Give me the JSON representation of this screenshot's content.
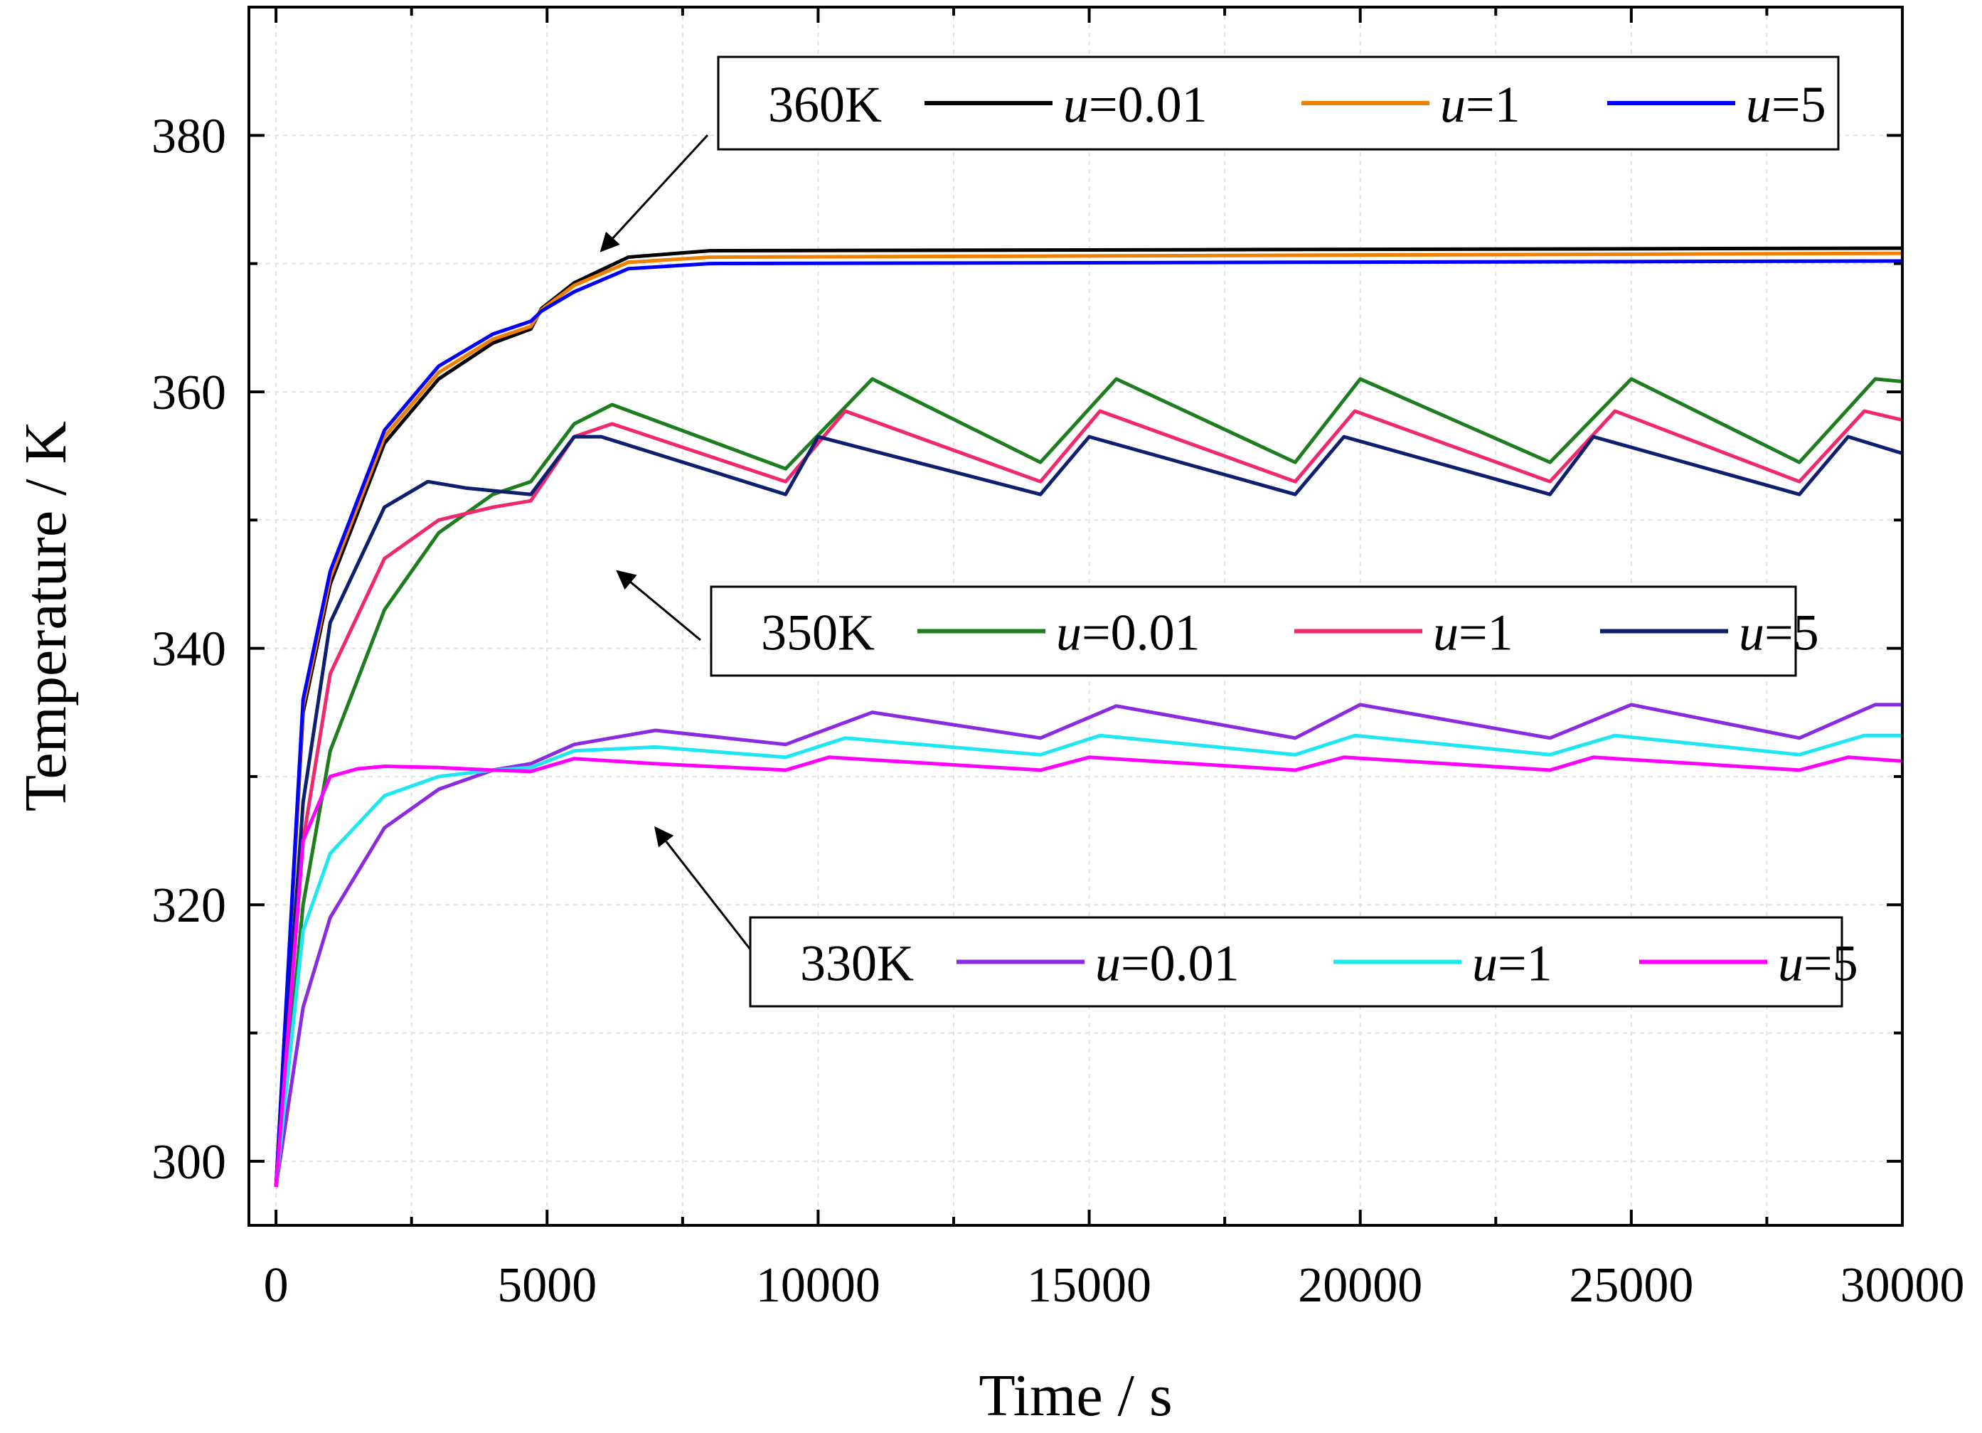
{
  "chart_data": {
    "type": "line",
    "title": "",
    "xlabel": "Time / s",
    "ylabel": "Temperature / K",
    "xlim": [
      -500,
      30000
    ],
    "ylim": [
      295,
      390
    ],
    "xticks": [
      "0",
      "5000",
      "10000",
      "15000",
      "20000",
      "25000",
      "30000"
    ],
    "yticks": [
      "300",
      "320",
      "340",
      "360",
      "380"
    ],
    "grid": true,
    "groups": [
      {
        "name": "360K",
        "legend_position": "top-right",
        "arrow_target": {
          "x": 6000,
          "y": 371
        },
        "series": [
          {
            "name": "u=0.01",
            "color": "#000000",
            "x": [
              0,
              500,
              1000,
              2000,
              3000,
              4000,
              4700,
              4900,
              5500,
              6500,
              8000,
              30000
            ],
            "y": [
              298,
              335,
              345,
              356,
              361,
              363.8,
              364.9,
              366.5,
              368.5,
              370.5,
              371,
              371.2
            ]
          },
          {
            "name": "u=1",
            "color": "#F08000",
            "x": [
              0,
              500,
              1000,
              2000,
              3000,
              4000,
              4700,
              4900,
              5500,
              6500,
              8000,
              30000
            ],
            "y": [
              298,
              335.5,
              345.5,
              356.5,
              361.5,
              364.1,
              365.1,
              366.4,
              368.3,
              370.1,
              370.5,
              370.8
            ]
          },
          {
            "name": "u=5",
            "color": "#0000FF",
            "x": [
              0,
              500,
              1000,
              2000,
              3000,
              4000,
              4700,
              4900,
              5500,
              6500,
              8000,
              30000
            ],
            "y": [
              298,
              336,
              346,
              357,
              362,
              364.5,
              365.5,
              366.3,
              367.8,
              369.6,
              370,
              370.2
            ]
          }
        ]
      },
      {
        "name": "350K",
        "legend_position": "center-right",
        "arrow_target": {
          "x": 6300,
          "y": 346
        },
        "series": [
          {
            "name": "u=0.01",
            "color": "#1E7D1E",
            "x": [
              0,
              500,
              1000,
              2000,
              3000,
              4000,
              4700,
              5500,
              6200,
              9400,
              11000,
              14100,
              15500,
              18800,
              20000,
              23500,
              25000,
              28100,
              29500,
              30000
            ],
            "y": [
              298,
              320,
              332,
              343,
              349,
              352,
              353,
              357.5,
              359,
              354,
              361,
              354.5,
              361,
              354.5,
              361,
              354.5,
              361,
              354.5,
              361,
              360.8
            ]
          },
          {
            "name": "u=1",
            "color": "#F0286E",
            "x": [
              0,
              500,
              1000,
              2000,
              3000,
              4000,
              4700,
              5500,
              6200,
              9400,
              10500,
              14100,
              15200,
              18800,
              19900,
              23500,
              24700,
              28100,
              29300,
              30000
            ],
            "y": [
              298,
              325,
              338,
              347,
              350,
              351,
              351.5,
              356.5,
              357.5,
              353,
              358.5,
              353,
              358.5,
              353,
              358.5,
              353,
              358.5,
              353,
              358.5,
              357.8
            ]
          },
          {
            "name": "u=5",
            "color": "#0D1F6E",
            "x": [
              0,
              500,
              1000,
              2000,
              2800,
              3500,
              4700,
              5500,
              6000,
              9400,
              10000,
              14100,
              15000,
              18800,
              19700,
              23500,
              24300,
              28100,
              29000,
              30000
            ],
            "y": [
              298,
              328,
              342,
              351,
              353,
              352.5,
              352,
              356.5,
              356.5,
              352,
              356.5,
              352,
              356.5,
              352,
              356.5,
              352,
              356.5,
              352,
              356.5,
              355.2
            ]
          }
        ]
      },
      {
        "name": "330K",
        "legend_position": "bottom-right",
        "arrow_target": {
          "x": 7000,
          "y": 326
        },
        "series": [
          {
            "name": "u=0.01",
            "color": "#8A2BE2",
            "x": [
              0,
              500,
              1000,
              2000,
              3000,
              4000,
              4700,
              5500,
              7000,
              9400,
              11000,
              14100,
              15500,
              18800,
              20000,
              23500,
              25000,
              28100,
              29500,
              30000
            ],
            "y": [
              298,
              312,
              319,
              326,
              329,
              330.5,
              331,
              332.5,
              333.6,
              332.5,
              335,
              333,
              335.5,
              333,
              335.6,
              333,
              335.6,
              333,
              335.6,
              335.6
            ]
          },
          {
            "name": "u=1",
            "color": "#1FE6F0",
            "x": [
              0,
              500,
              1000,
              2000,
              3000,
              4000,
              4700,
              5500,
              7000,
              9400,
              10500,
              14100,
              15200,
              18800,
              19900,
              23500,
              24700,
              28100,
              29300,
              30000
            ],
            "y": [
              298,
              318,
              324,
              328.5,
              330,
              330.5,
              330.7,
              332,
              332.3,
              331.5,
              333,
              331.7,
              333.2,
              331.7,
              333.2,
              331.7,
              333.2,
              331.7,
              333.2,
              333.2
            ]
          },
          {
            "name": "u=5",
            "color": "#FF00FF",
            "x": [
              0,
              500,
              1000,
              1500,
              2000,
              3000,
              4000,
              4700,
              5500,
              7000,
              9400,
              10200,
              14100,
              15000,
              18800,
              19700,
              23500,
              24300,
              28100,
              29000,
              30000
            ],
            "y": [
              298,
              325,
              330,
              330.6,
              330.8,
              330.7,
              330.5,
              330.4,
              331.4,
              331,
              330.5,
              331.5,
              330.5,
              331.5,
              330.5,
              331.5,
              330.5,
              331.5,
              330.5,
              331.5,
              331.2
            ]
          }
        ]
      }
    ]
  }
}
